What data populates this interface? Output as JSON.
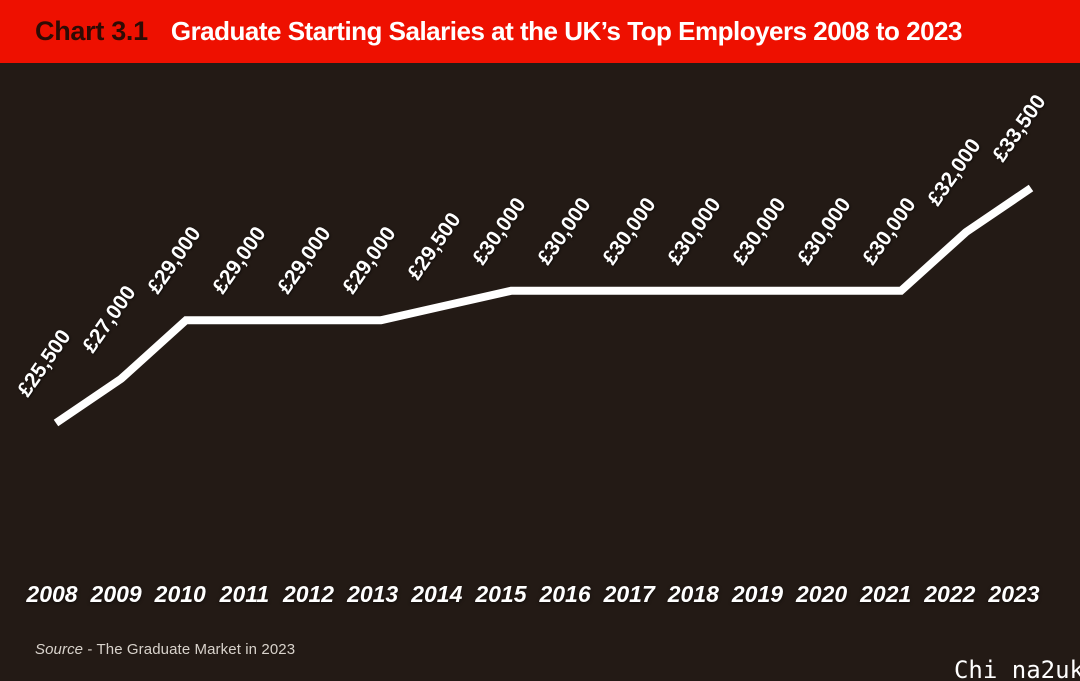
{
  "header": {
    "chart_number": "Chart 3.1",
    "title": "Graduate Starting Salaries at the UK’s Top Employers 2008 to 2023"
  },
  "chart_data": {
    "type": "line",
    "title": "Graduate Starting Salaries at the UK’s Top Employers 2008 to 2023",
    "x": [
      2008,
      2009,
      2010,
      2011,
      2012,
      2013,
      2014,
      2015,
      2016,
      2017,
      2018,
      2019,
      2020,
      2021,
      2022,
      2023
    ],
    "values": [
      25500,
      27000,
      29000,
      29000,
      29000,
      29000,
      29500,
      30000,
      30000,
      30000,
      30000,
      30000,
      30000,
      30000,
      32000,
      33500
    ],
    "value_labels": [
      "£25,500",
      "£27,000",
      "£29,000",
      "£29,000",
      "£29,000",
      "£29,000",
      "£29,500",
      "£30,000",
      "£30,000",
      "£30,000",
      "£30,000",
      "£30,000",
      "£30,000",
      "£30,000",
      "£32,000",
      "£33,500"
    ],
    "xlabel": "",
    "ylabel": "",
    "ylim": [
      25000,
      34500
    ],
    "grid": false,
    "legend": "none",
    "line_color": "#ffffff",
    "background": "#231a15"
  },
  "source": {
    "prefix": "Source",
    "rest": " - The Graduate Market in 2023"
  },
  "watermark": "Chi na2uk",
  "colors": {
    "header_bg": "#ee1000",
    "chart_number_text": "#2e0b04",
    "title_text": "#ffffff",
    "plot_background": "#231a15",
    "line": "#ffffff",
    "axis_text": "#ffffff",
    "source_text": "#d8d2cb"
  }
}
